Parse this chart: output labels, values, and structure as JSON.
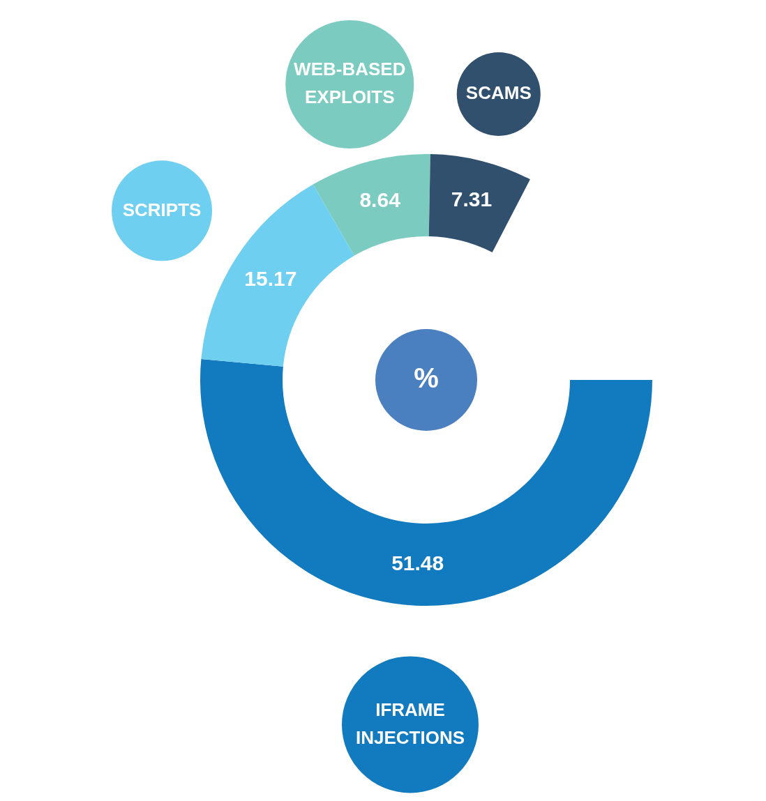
{
  "chart_data": {
    "type": "donut",
    "categories": [
      "IFRAME INJECTIONS",
      "SCRIPTS",
      "WEB-BASED EXPLOITS",
      "SCAMS"
    ],
    "values": [
      51.48,
      15.17,
      8.64,
      7.31
    ],
    "colors": [
      "#127abf",
      "#6ecff0",
      "#7bcbc0",
      "#30506e"
    ],
    "data_labels": true,
    "annotations": [
      "%"
    ]
  }
}
